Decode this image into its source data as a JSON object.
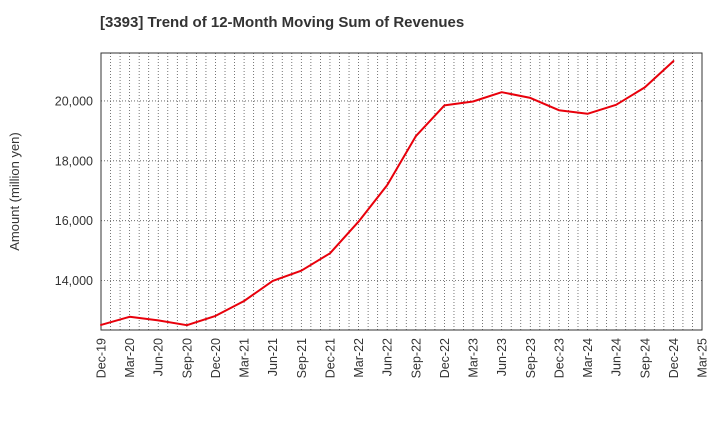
{
  "chart_data": {
    "type": "line",
    "title": "[3393]  Trend of 12-Month Moving Sum of Revenues",
    "ylabel": "Amount (million yen)",
    "xlabel": "",
    "categories": [
      "Dec-19",
      "Mar-20",
      "Jun-20",
      "Sep-20",
      "Dec-20",
      "Mar-21",
      "Jun-21",
      "Sep-21",
      "Dec-21",
      "Mar-22",
      "Jun-22",
      "Sep-22",
      "Dec-22",
      "Mar-23",
      "Jun-23",
      "Sep-23",
      "Dec-23",
      "Mar-24",
      "Jun-24",
      "Sep-24",
      "Dec-24",
      "Mar-25"
    ],
    "series": [
      {
        "color": "#e8000b",
        "values": [
          12520,
          12790,
          12670,
          12510,
          12820,
          13320,
          13990,
          14330,
          14910,
          15970,
          17190,
          18820,
          19850,
          19980,
          20290,
          20100,
          19690,
          19570,
          19870,
          20450,
          21330,
          null
        ]
      }
    ],
    "ylim": [
      12350,
      21600
    ],
    "yticks": [
      14000,
      16000,
      18000,
      20000
    ],
    "ytick_labels": [
      "14,000",
      "16,000",
      "18,000",
      "20,000"
    ],
    "grid": true,
    "grid_style": "dotted",
    "legend": "none"
  }
}
